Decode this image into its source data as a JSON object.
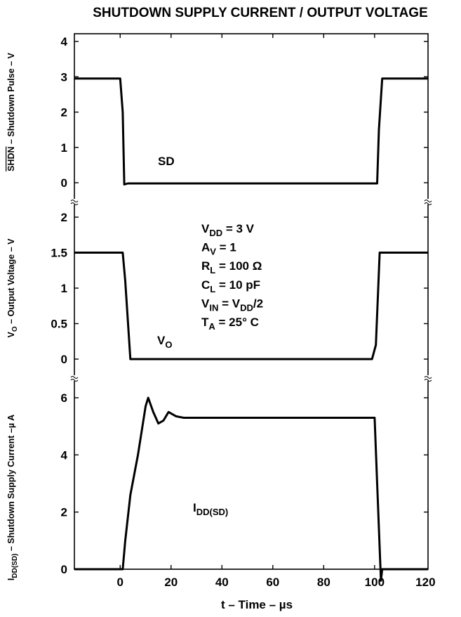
{
  "chart_data": {
    "type": "line",
    "title": "SHUTDOWN SUPPLY CURRENT / OUTPUT VOLTAGE",
    "xlabel": "t – Time – µs",
    "xlim": [
      -18,
      121
    ],
    "xticks": [
      "0",
      "20",
      "40",
      "60",
      "80",
      "100",
      "120"
    ],
    "xtick_values": [
      0,
      20,
      40,
      60,
      80,
      100,
      120
    ],
    "panels": [
      {
        "id": "shdn",
        "ylabel": {
          "overline": "SHDN",
          "rest": " – Shutdown Pulse – V"
        },
        "ylim": [
          -0.6,
          4
        ],
        "yticks": [
          "0",
          "1",
          "2",
          "3",
          "4"
        ],
        "ytick_values": [
          0,
          1,
          2,
          3,
          4
        ],
        "series": [
          {
            "name": "SD",
            "x": [
              -18,
              0,
              1,
              1.6,
              3,
              101,
              101.7,
              103,
              121
            ],
            "y": [
              2.95,
              2.95,
              2.0,
              -0.05,
              -0.02,
              -0.02,
              1.5,
              2.95,
              2.95
            ]
          }
        ]
      },
      {
        "id": "vo",
        "ylabel": {
          "main": "V",
          "sub": "O",
          "rest": " – Output Voltage – V"
        },
        "ylim": [
          -0.3,
          2.3
        ],
        "yticks": [
          "0",
          "0.5",
          "1",
          "1.5",
          "2"
        ],
        "ytick_values": [
          0,
          0.5,
          1,
          1.5,
          2
        ],
        "series": [
          {
            "name": "VO",
            "x": [
              -18,
              1,
              2,
              4,
              99,
              100.5,
              102,
              121
            ],
            "y": [
              1.5,
              1.5,
              1.1,
              0,
              0,
              0.2,
              1.5,
              1.5
            ]
          }
        ]
      },
      {
        "id": "idd",
        "ylabel": {
          "main": "I",
          "sub": "DD(SD)",
          "rest": " – Shutdown Supply Current –µ A"
        },
        "ylim": [
          6,
          -2
        ],
        "yticks": [
          "0",
          "2",
          "4",
          "6"
        ],
        "ytick_values": [
          0,
          2,
          4,
          6
        ],
        "series": [
          {
            "name": "IDD(SD)",
            "x": [
              -18,
              1,
              2,
              4,
              7,
              10,
              11,
              13,
              15,
              17,
              19,
              22,
              25,
              100,
              101,
              102.5,
              103,
              104,
              121
            ],
            "y": [
              0,
              0,
              1.0,
              2.6,
              4.0,
              5.7,
              6.0,
              5.5,
              5.1,
              5.2,
              5.5,
              5.35,
              5.3,
              5.3,
              3.0,
              -0.4,
              0,
              0,
              0
            ]
          }
        ]
      }
    ],
    "annotations": {
      "sd": "SD",
      "vo_main": "V",
      "vo_sub": "O",
      "idd_main": "I",
      "idd_sub": "DD(SD)",
      "conditions": [
        {
          "main": "V",
          "sub": "DD",
          "rest": " = 3 V"
        },
        {
          "main": "A",
          "sub": "V",
          "rest": " = 1"
        },
        {
          "main": "R",
          "sub": "L",
          "rest": " = 100 Ω"
        },
        {
          "main": "C",
          "sub": "L",
          "rest": " = 10 pF"
        },
        {
          "main": "V",
          "sub": "IN",
          "rest": " = V",
          "sub2": "DD",
          "rest2": "/2"
        },
        {
          "main": "T",
          "sub": "A",
          "rest": " = 25° C"
        }
      ]
    },
    "grid": false,
    "legend": "none"
  }
}
